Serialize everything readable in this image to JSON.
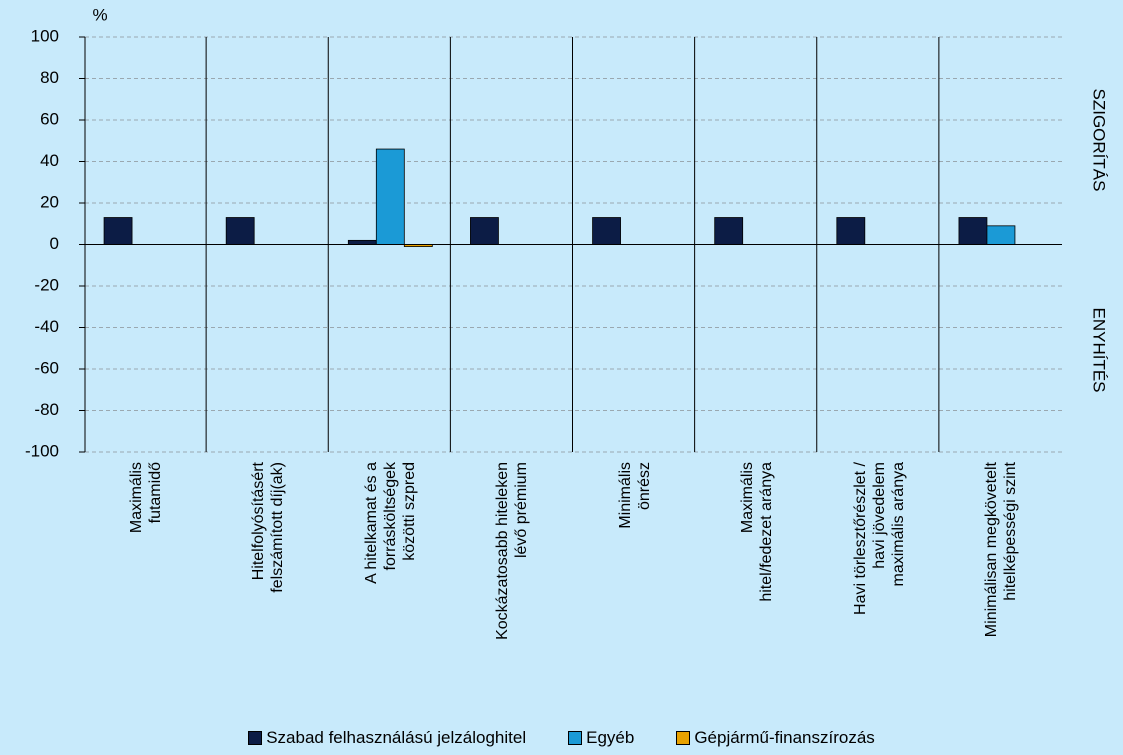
{
  "chart_data": {
    "type": "bar",
    "y_label": "%",
    "annotations": [
      "SZIGORÍTÁS",
      "ENYHÍTÉS"
    ],
    "categories": [
      "Maximális\nfutamidő",
      "Hitelfolyósításért\nfelszámított díj(ak)",
      "A hitelkamat és a\nforrásköltségek\nközötti szpred",
      "Kockázatosabb hiteleken\nlévő prémium",
      "Minimális\nönrész",
      "Maximális\nhitel/fedezet aránya",
      "Havi törlesztőrészlet /\nhavi jövedelem\nmaximális aránya",
      "Minimálisan megkövetelt\nhitelképességi szint"
    ],
    "series": [
      {
        "name": "Szabad felhasználású jelzáloghitel",
        "color": "#0c1c45",
        "values": [
          13,
          13,
          2,
          13,
          13,
          13,
          13,
          13
        ]
      },
      {
        "name": "Egyéb",
        "color": "#1b9ad6",
        "values": [
          0,
          0,
          46,
          0,
          0,
          0,
          0,
          9
        ]
      },
      {
        "name": "Gépjármű-finanszírozás",
        "color": "#e8a200",
        "values": [
          0,
          0,
          -1,
          0,
          0,
          0,
          0,
          0
        ]
      }
    ],
    "ylim": [
      -100,
      100
    ],
    "yticks": [
      -100,
      -80,
      -60,
      -40,
      -20,
      0,
      20,
      40,
      60,
      80,
      100
    ],
    "grid": true
  }
}
